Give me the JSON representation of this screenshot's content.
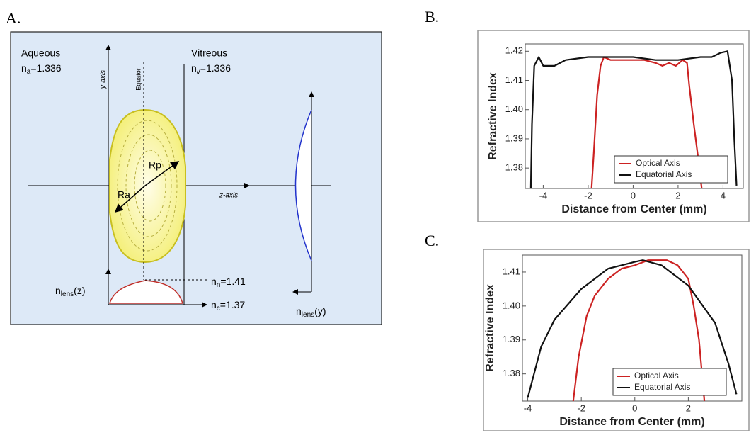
{
  "panel_labels": [
    "A.",
    "B.",
    "C."
  ],
  "diagram": {
    "aqueous": {
      "name": "Aqueous",
      "symbol": "n",
      "sub": "a",
      "value": "=1.336"
    },
    "vitreous": {
      "name": "Vitreous",
      "symbol": "n",
      "sub": "v",
      "value": "=1.336"
    },
    "y_axis": "y-axis",
    "equator": "Equator",
    "rp": "Rp",
    "ra": "Ra",
    "z_axis": "z-axis",
    "nlens_y": {
      "symbol": "n",
      "sub": "lens",
      "value": "(y)"
    },
    "nlens_z": {
      "symbol": "n",
      "sub": "lens",
      "value": "(z)"
    },
    "nucleus": {
      "symbol": "n",
      "sub": "n",
      "value": "=1.41"
    },
    "cortex": {
      "symbol": "n",
      "sub": "c",
      "value": "=1.37"
    }
  },
  "chart_data": [
    {
      "type": "line",
      "x_label": "Distance from Center (mm)",
      "y_label": "Refractive Index",
      "xlim": [
        -4.8,
        4.9
      ],
      "ylim": [
        1.373,
        1.4225
      ],
      "xticks": [
        -4,
        -2,
        0,
        2,
        4
      ],
      "yticks": [
        1.38,
        1.39,
        {
          "value": 1.4,
          "label": "1.40"
        },
        1.41,
        1.42
      ],
      "legend": "lower right",
      "series": [
        {
          "name": "Optical Axis",
          "color": "#cc2222",
          "x": [
            -1.85,
            -1.75,
            -1.6,
            -1.45,
            -1.3,
            -1.0,
            -0.5,
            0,
            0.5,
            1.0,
            1.3,
            1.6,
            1.9,
            2.2,
            2.4,
            2.5,
            2.7,
            2.9,
            3.05
          ],
          "values": [
            1.373,
            1.385,
            1.405,
            1.415,
            1.418,
            1.417,
            1.417,
            1.417,
            1.417,
            1.416,
            1.415,
            1.416,
            1.415,
            1.417,
            1.416,
            1.408,
            1.395,
            1.383,
            1.373
          ]
        },
        {
          "name": "Equatorial Axis",
          "color": "#111111",
          "x": [
            -4.55,
            -4.5,
            -4.4,
            -4.2,
            -4.0,
            -3.5,
            -3.0,
            -2.0,
            -1.0,
            0,
            1.0,
            2.0,
            3.0,
            3.5,
            3.9,
            4.2,
            4.4,
            4.5,
            4.6
          ],
          "values": [
            1.373,
            1.395,
            1.415,
            1.418,
            1.415,
            1.415,
            1.417,
            1.418,
            1.418,
            1.418,
            1.417,
            1.417,
            1.418,
            1.418,
            1.4195,
            1.42,
            1.41,
            1.39,
            1.374
          ]
        }
      ]
    },
    {
      "type": "line",
      "x_label": "Distance from Center (mm)",
      "y_label": "Refractive Index",
      "xlim": [
        -4.2,
        4.0
      ],
      "ylim": [
        1.372,
        1.415
      ],
      "xticks": [
        -4,
        -2,
        0,
        2
      ],
      "yticks": [
        1.38,
        1.39,
        {
          "value": 1.4,
          "label": "1.40"
        },
        1.41
      ],
      "legend": "lower right",
      "series": [
        {
          "name": "Optical Axis",
          "color": "#cc2222",
          "x": [
            -2.3,
            -2.1,
            -1.8,
            -1.5,
            -1.0,
            -0.5,
            0,
            0.5,
            1.2,
            1.6,
            2.0,
            2.2,
            2.4,
            2.6
          ],
          "values": [
            1.372,
            1.385,
            1.397,
            1.403,
            1.408,
            1.411,
            1.412,
            1.4135,
            1.4135,
            1.412,
            1.408,
            1.4,
            1.39,
            1.372
          ]
        },
        {
          "name": "Equatorial Axis",
          "color": "#111111",
          "x": [
            -4.0,
            -3.5,
            -3.0,
            -2.0,
            -1.0,
            0,
            0.3,
            1.0,
            2.0,
            3.0,
            3.5,
            3.8
          ],
          "values": [
            1.373,
            1.388,
            1.396,
            1.405,
            1.411,
            1.413,
            1.4135,
            1.412,
            1.406,
            1.395,
            1.383,
            1.374
          ]
        }
      ]
    }
  ]
}
